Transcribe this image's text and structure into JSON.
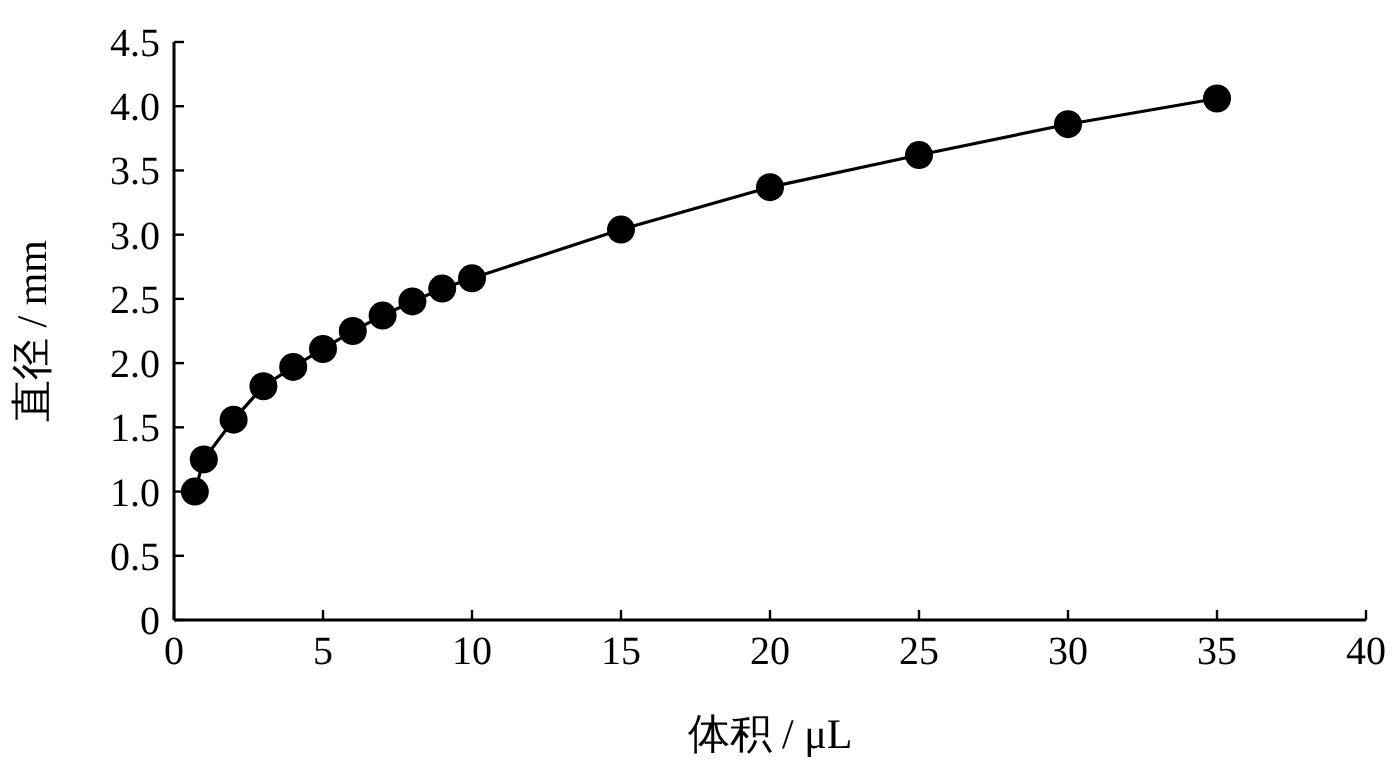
{
  "chart_data": {
    "type": "line",
    "xlabel": "体积 / μL",
    "ylabel": "直径 / mm",
    "x": [
      0.7,
      1,
      2,
      3,
      4,
      5,
      6,
      7,
      8,
      9,
      10,
      15,
      20,
      25,
      30,
      35
    ],
    "series": [
      {
        "color": "#000000",
        "values": [
          1.0,
          1.25,
          1.56,
          1.82,
          1.97,
          2.11,
          2.25,
          2.37,
          2.48,
          2.58,
          2.66,
          3.04,
          3.37,
          3.62,
          3.86,
          4.06
        ]
      }
    ],
    "marker": "circle",
    "line_style": "solid",
    "xlim": [
      0,
      40
    ],
    "ylim": [
      0,
      4.5
    ],
    "xticks": [
      0,
      5,
      10,
      15,
      20,
      25,
      30,
      35,
      40
    ],
    "yticks": [
      0,
      {
        "value": 0.5,
        "label": "0.5"
      },
      {
        "value": 1,
        "label": "1.0"
      },
      {
        "value": 1.5,
        "label": "1.5"
      },
      {
        "value": 2,
        "label": "2.0"
      },
      {
        "value": 2.5,
        "label": "2.5"
      },
      {
        "value": 3,
        "label": "3.0"
      },
      {
        "value": 3.5,
        "label": "3.5"
      },
      {
        "value": 4,
        "label": "4.0"
      },
      {
        "value": 4.5,
        "label": "4.5"
      }
    ]
  }
}
